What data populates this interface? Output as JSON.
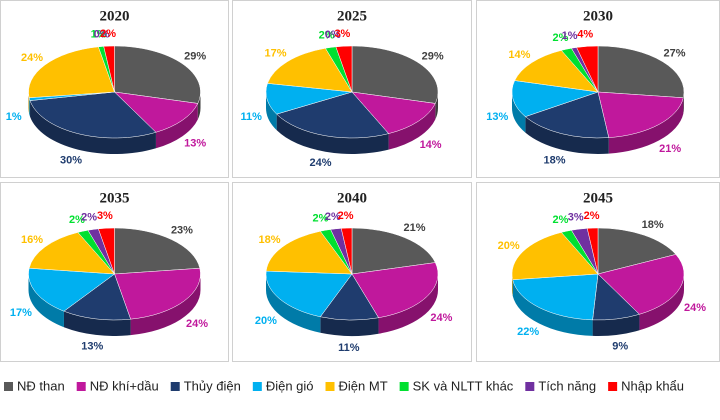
{
  "chart_data": [
    {
      "type": "pie",
      "title": "2020",
      "categories": [
        "NĐ than",
        "NĐ khí+dầu",
        "Thủy điện",
        "Điện gió",
        "Điện MT",
        "SK và NLTT khác",
        "Tích năng",
        "Nhập khẩu"
      ],
      "values": [
        29,
        13,
        30,
        1,
        24,
        1,
        0,
        2
      ],
      "value_labels": [
        "29%",
        "13%",
        "30%",
        "1%",
        "24%",
        "1%",
        "0%",
        "2%"
      ],
      "colors": [
        "#595959",
        "#c0189c",
        "#1f3c6e",
        "#00b0f0",
        "#ffc000",
        "#00e030",
        "#7030a0",
        "#ff0000"
      ]
    },
    {
      "type": "pie",
      "title": "2025",
      "categories": [
        "NĐ than",
        "NĐ khí+dầu",
        "Thủy điện",
        "Điện gió",
        "Điện MT",
        "SK và NLTT khác",
        "Tích năng",
        "Nhập khẩu"
      ],
      "values": [
        29,
        14,
        24,
        11,
        17,
        2,
        0,
        3
      ],
      "value_labels": [
        "29%",
        "14%",
        "24%",
        "11%",
        "17%",
        "2%",
        "0%",
        "3%"
      ],
      "colors": [
        "#595959",
        "#c0189c",
        "#1f3c6e",
        "#00b0f0",
        "#ffc000",
        "#00e030",
        "#7030a0",
        "#ff0000"
      ]
    },
    {
      "type": "pie",
      "title": "2030",
      "categories": [
        "NĐ than",
        "NĐ khí+dầu",
        "Thủy điện",
        "Điện gió",
        "Điện MT",
        "SK và NLTT khác",
        "Tích năng",
        "Nhập khẩu"
      ],
      "values": [
        27,
        21,
        18,
        13,
        14,
        2,
        1,
        4
      ],
      "value_labels": [
        "27%",
        "21%",
        "18%",
        "13%",
        "14%",
        "2%",
        "1%",
        "4%"
      ],
      "colors": [
        "#595959",
        "#c0189c",
        "#1f3c6e",
        "#00b0f0",
        "#ffc000",
        "#00e030",
        "#7030a0",
        "#ff0000"
      ]
    },
    {
      "type": "pie",
      "title": "2035",
      "categories": [
        "NĐ than",
        "NĐ khí+dầu",
        "Thủy điện",
        "Điện gió",
        "Điện MT",
        "SK và NLTT khác",
        "Tích năng",
        "Nhập khẩu"
      ],
      "values": [
        23,
        24,
        13,
        17,
        16,
        2,
        2,
        3
      ],
      "value_labels": [
        "23%",
        "24%",
        "13%",
        "17%",
        "16%",
        "2%",
        "2%",
        "3%"
      ],
      "colors": [
        "#595959",
        "#c0189c",
        "#1f3c6e",
        "#00b0f0",
        "#ffc000",
        "#00e030",
        "#7030a0",
        "#ff0000"
      ]
    },
    {
      "type": "pie",
      "title": "2040",
      "categories": [
        "NĐ than",
        "NĐ khí+dầu",
        "Thủy điện",
        "Điện gió",
        "Điện MT",
        "SK và NLTT khác",
        "Tích năng",
        "Nhập khẩu"
      ],
      "values": [
        21,
        24,
        11,
        20,
        18,
        2,
        2,
        2
      ],
      "value_labels": [
        "21%",
        "24%",
        "11%",
        "20%",
        "18%",
        "2%",
        "2%",
        "2%"
      ],
      "colors": [
        "#595959",
        "#c0189c",
        "#1f3c6e",
        "#00b0f0",
        "#ffc000",
        "#00e030",
        "#7030a0",
        "#ff0000"
      ]
    },
    {
      "type": "pie",
      "title": "2045",
      "categories": [
        "NĐ than",
        "NĐ khí+dầu",
        "Thủy điện",
        "Điện gió",
        "Điện MT",
        "SK và NLTT khác",
        "Tích năng",
        "Nhập khẩu"
      ],
      "values": [
        18,
        24,
        9,
        22,
        20,
        2,
        3,
        2
      ],
      "value_labels": [
        "18%",
        "24%",
        "9%",
        "22%",
        "20%",
        "2%",
        "3%",
        "2%"
      ],
      "colors": [
        "#595959",
        "#c0189c",
        "#1f3c6e",
        "#00b0f0",
        "#ffc000",
        "#00e030",
        "#7030a0",
        "#ff0000"
      ]
    }
  ]
}
